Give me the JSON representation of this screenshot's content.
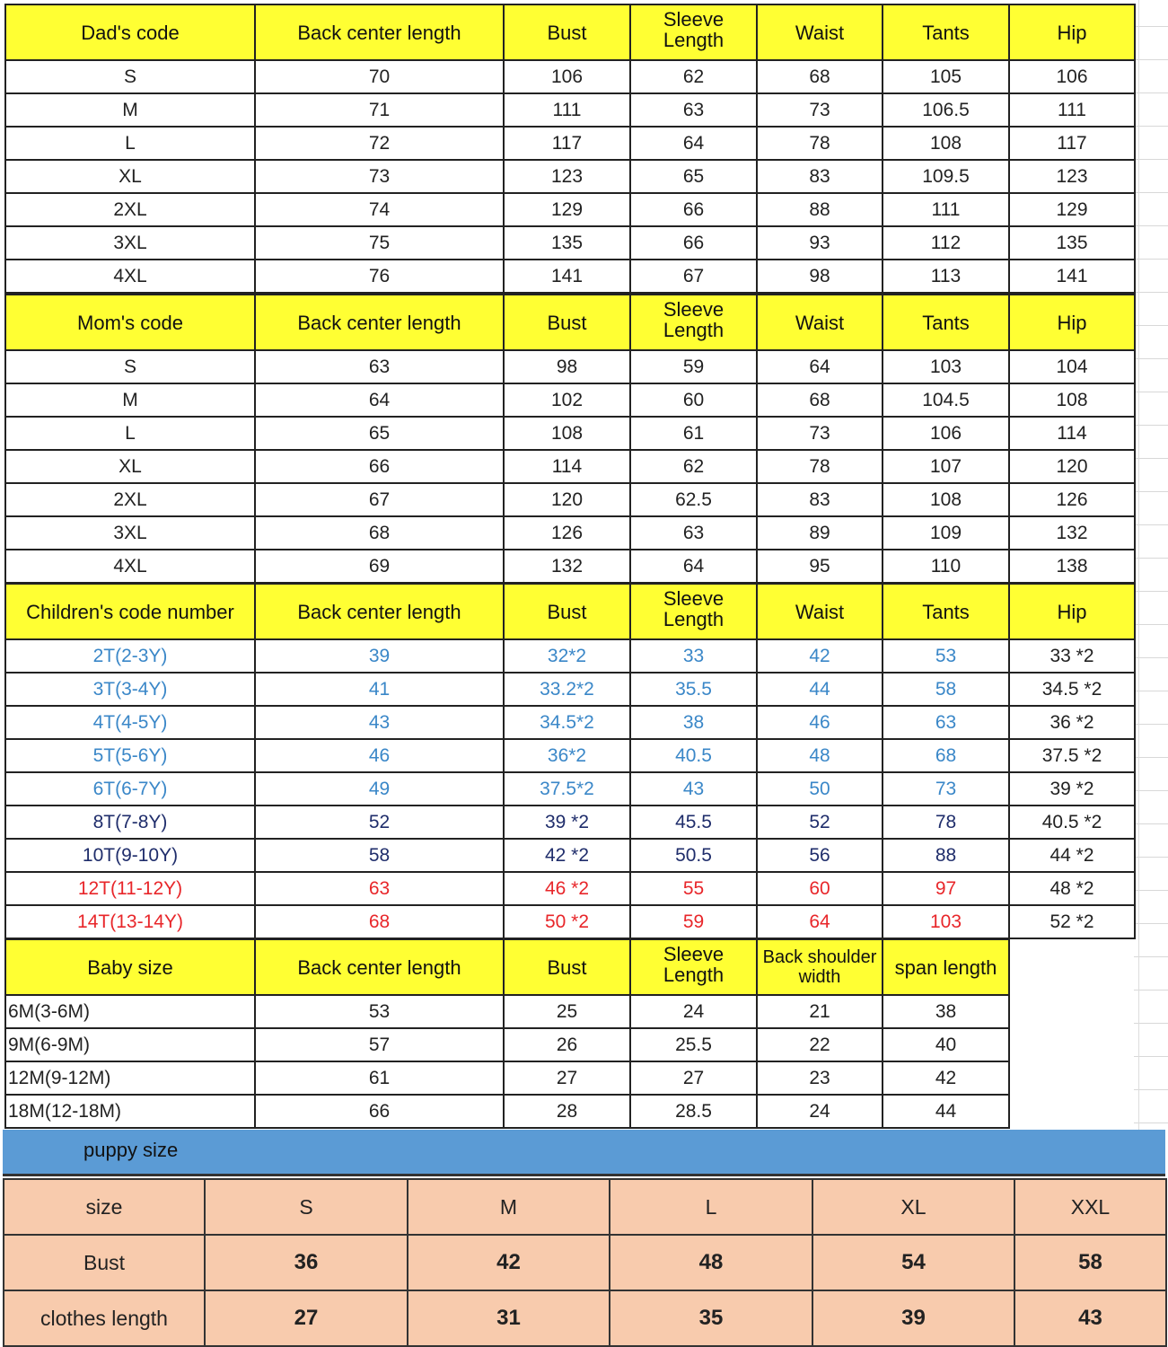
{
  "colors": {
    "header_bg": "#ffff33",
    "blue_text": "#3a87c8",
    "navy_text": "#1f2d6b",
    "red_text": "#e8262a",
    "puppy_band": "#5b9bd5",
    "puppy_cells": "#f8cbad"
  },
  "sections": [
    {
      "headers": [
        "Dad's code",
        "Back center length",
        "Bust",
        "Sleeve Length",
        "Waist",
        "Tants",
        "Hip"
      ],
      "rows": [
        {
          "cells": [
            "S",
            "70",
            "106",
            "62",
            "68",
            "105",
            "106"
          ]
        },
        {
          "cells": [
            "M",
            "71",
            "111",
            "63",
            "73",
            "106.5",
            "111"
          ]
        },
        {
          "cells": [
            "L",
            "72",
            "117",
            "64",
            "78",
            "108",
            "117"
          ]
        },
        {
          "cells": [
            "XL",
            "73",
            "123",
            "65",
            "83",
            "109.5",
            "123"
          ]
        },
        {
          "cells": [
            "2XL",
            "74",
            "129",
            "66",
            "88",
            "111",
            "129"
          ]
        },
        {
          "cells": [
            "3XL",
            "75",
            "135",
            "66",
            "93",
            "112",
            "135"
          ]
        },
        {
          "cells": [
            "4XL",
            "76",
            "141",
            "67",
            "98",
            "113",
            "141"
          ]
        }
      ]
    },
    {
      "headers": [
        "Mom's code",
        "Back center length",
        "Bust",
        "Sleeve Length",
        "Waist",
        "Tants",
        "Hip"
      ],
      "rows": [
        {
          "cells": [
            "S",
            "63",
            "98",
            "59",
            "64",
            "103",
            "104"
          ]
        },
        {
          "cells": [
            "M",
            "64",
            "102",
            "60",
            "68",
            "104.5",
            "108"
          ]
        },
        {
          "cells": [
            "L",
            "65",
            "108",
            "61",
            "73",
            "106",
            "114"
          ]
        },
        {
          "cells": [
            "XL",
            "66",
            "114",
            "62",
            "78",
            "107",
            "120"
          ]
        },
        {
          "cells": [
            "2XL",
            "67",
            "120",
            "62.5",
            "83",
            "108",
            "126"
          ]
        },
        {
          "cells": [
            "3XL",
            "68",
            "126",
            "63",
            "89",
            "109",
            "132"
          ]
        },
        {
          "cells": [
            "4XL",
            "69",
            "132",
            "64",
            "95",
            "110",
            "138"
          ]
        }
      ]
    },
    {
      "headers": [
        "Children's code number",
        "Back center length",
        "Bust",
        "Sleeve Length",
        "Waist",
        "Tants",
        "Hip"
      ],
      "rows": [
        {
          "color": "#3a87c8",
          "cells": [
            "2T(2-3Y)",
            "39",
            "32*2",
            "33",
            "42",
            "53",
            "33 *2"
          ]
        },
        {
          "color": "#3a87c8",
          "cells": [
            "3T(3-4Y)",
            "41",
            "33.2*2",
            "35.5",
            "44",
            "58",
            "34.5 *2"
          ]
        },
        {
          "color": "#3a87c8",
          "cells": [
            "4T(4-5Y)",
            "43",
            "34.5*2",
            "38",
            "46",
            "63",
            "36 *2"
          ]
        },
        {
          "color": "#3a87c8",
          "cells": [
            "5T(5-6Y)",
            "46",
            "36*2",
            "40.5",
            "48",
            "68",
            "37.5 *2"
          ]
        },
        {
          "color": "#3a87c8",
          "cells": [
            "6T(6-7Y)",
            "49",
            "37.5*2",
            "43",
            "50",
            "73",
            "39 *2"
          ]
        },
        {
          "color": "#1f2d6b",
          "cells": [
            "8T(7-8Y)",
            "52",
            "39 *2",
            "45.5",
            "52",
            "78",
            "40.5 *2"
          ]
        },
        {
          "color": "#1f2d6b",
          "cells": [
            "10T(9-10Y)",
            "58",
            "42 *2",
            "50.5",
            "56",
            "88",
            "44 *2"
          ]
        },
        {
          "color": "#e8262a",
          "cells": [
            "12T(11-12Y)",
            "63",
            "46 *2",
            "55",
            "60",
            "97",
            "48 *2"
          ]
        },
        {
          "color": "#e8262a",
          "cells": [
            "14T(13-14Y)",
            "68",
            "50 *2",
            "59",
            "64",
            "103",
            "52 *2"
          ]
        }
      ]
    },
    {
      "headers": [
        "Baby size",
        "Back center length",
        "Bust",
        "Sleeve Length",
        "Back shoulder width",
        "span length"
      ],
      "rows": [
        {
          "cells": [
            "6M(3-6M)",
            "53",
            "25",
            "24",
            "21",
            "38"
          ]
        },
        {
          "cells": [
            "9M(6-9M)",
            "57",
            "26",
            "25.5",
            "22",
            "40"
          ]
        },
        {
          "cells": [
            "12M(9-12M)",
            "61",
            "27",
            "27",
            "23",
            "42"
          ]
        },
        {
          "cells": [
            "18M(12-18M)",
            "66",
            "28",
            "28.5",
            "24",
            "44"
          ]
        }
      ]
    }
  ],
  "puppy": {
    "title": "puppy size",
    "rows": [
      {
        "cells": [
          "size",
          "S",
          "M",
          "L",
          "XL",
          "XXL"
        ]
      },
      {
        "cells": [
          "Bust",
          "36",
          "42",
          "48",
          "54",
          "58"
        ]
      },
      {
        "cells": [
          "clothes length",
          "27",
          "31",
          "35",
          "39",
          "43"
        ]
      }
    ]
  }
}
